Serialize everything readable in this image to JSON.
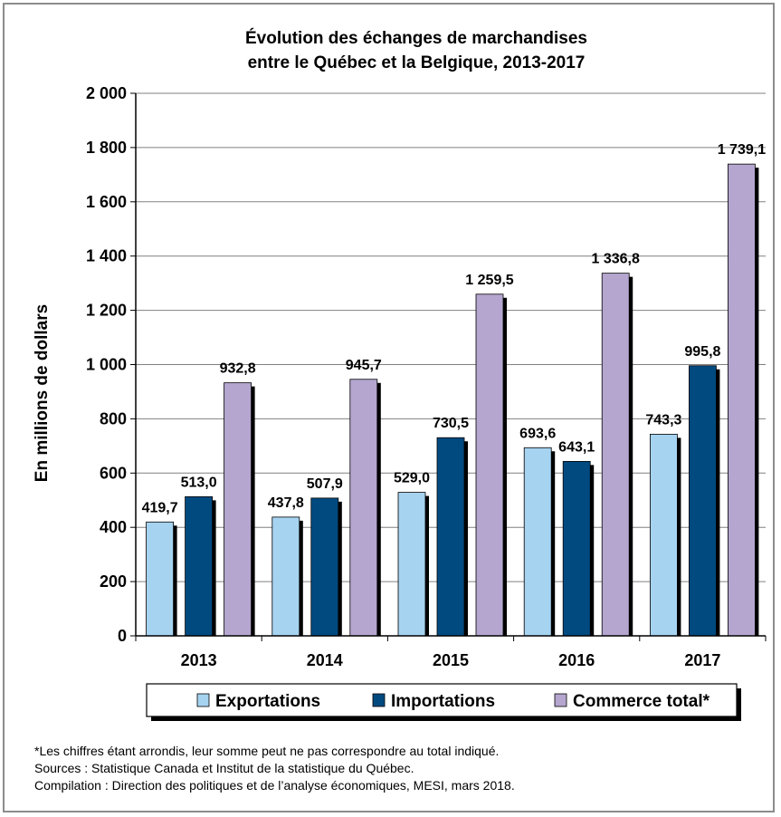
{
  "chart_data": {
    "type": "bar",
    "title": [
      "Évolution des échanges de marchandises",
      "entre le Québec et la Belgique, 2013-2017"
    ],
    "ylabel": "En millions de dollars",
    "xlabel": "",
    "ylim": [
      0,
      2000
    ],
    "yticks": [
      0,
      200,
      400,
      600,
      800,
      1000,
      1200,
      1400,
      1600,
      1800,
      2000
    ],
    "ytick_labels": [
      "0",
      "200",
      "400",
      "600",
      "800",
      "1 000",
      "1 200",
      "1 400",
      "1 600",
      "1 800",
      "2 000"
    ],
    "categories": [
      "2013",
      "2014",
      "2015",
      "2016",
      "2017"
    ],
    "series": [
      {
        "name": "Exportations",
        "color": "#a6d3f0",
        "values": [
          419.7,
          437.8,
          529.0,
          693.6,
          743.3
        ],
        "labels": [
          "419,7",
          "437,8",
          "529,0",
          "693,6",
          "743,3"
        ]
      },
      {
        "name": "Importations",
        "color": "#004a80",
        "values": [
          513.0,
          507.9,
          730.5,
          643.1,
          995.8
        ],
        "labels": [
          "513,0",
          "507,9",
          "730,5",
          "643,1",
          "995,8"
        ]
      },
      {
        "name": "Commerce total*",
        "color": "#b4a6cf",
        "values": [
          932.8,
          945.7,
          1259.5,
          1336.8,
          1739.1
        ],
        "labels": [
          "932,8",
          "945,7",
          "1 259,5",
          "1 336,8",
          "1 739,1"
        ]
      }
    ],
    "grid": true,
    "legend_position": "bottom"
  },
  "notes": {
    "line1": "*Les chiffres étant arrondis, leur somme peut ne pas correspondre au total indiqué.",
    "line2": "Sources : Statistique Canada et Institut de la statistique du Québec.",
    "line3": "Compilation : Direction des politiques et de l’analyse économiques, MESI, mars 2018."
  }
}
